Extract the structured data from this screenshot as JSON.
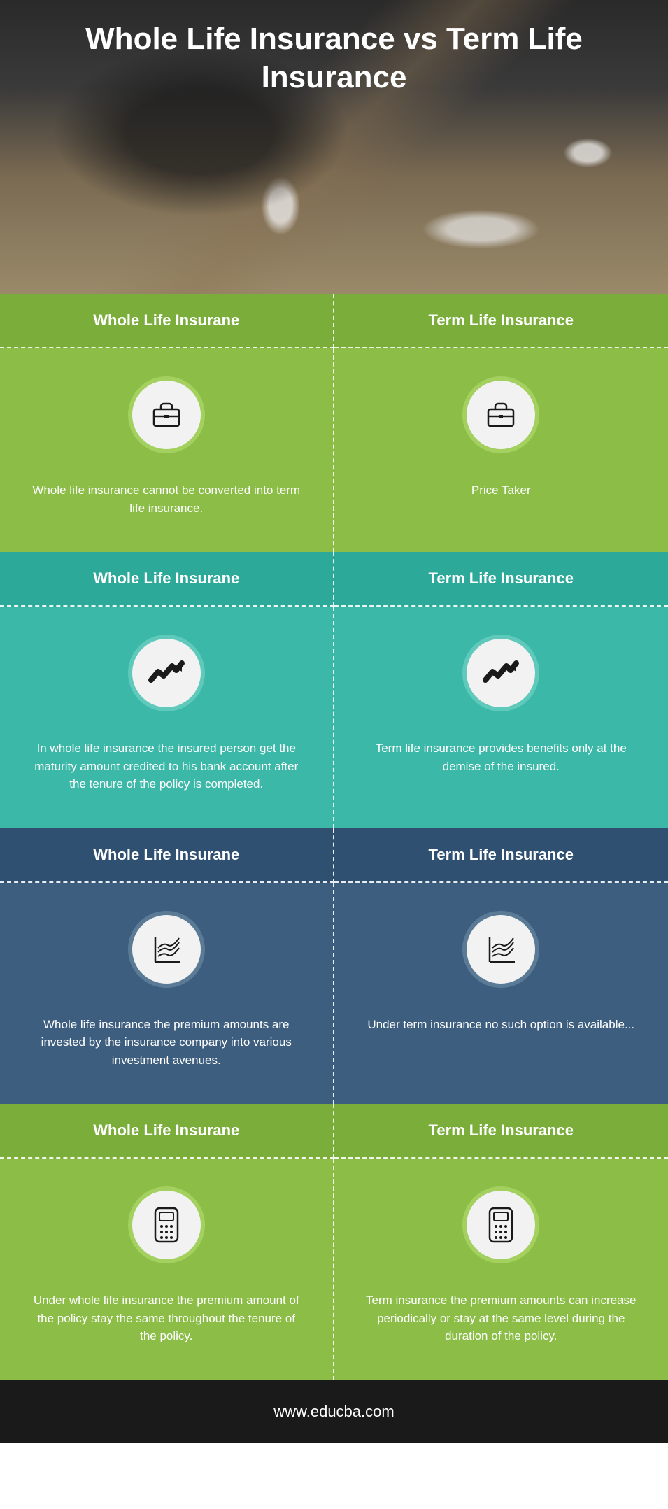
{
  "title": "Whole Life Insurance vs Term Life Insurance",
  "footer_url": "www.educba.com",
  "sections": [
    {
      "bg": "#8bbd47",
      "header_bg": "#7aad3a",
      "icon_outer": "#a3d05f",
      "icon_inner": "#f2f2f2",
      "icon_type": "briefcase",
      "left_header": "Whole Life Insurane",
      "right_header": "Term Life Insurance",
      "left_text": "Whole life insurance cannot be converted into term life insurance.",
      "right_text": "Price Taker"
    },
    {
      "bg": "#3bb8a8",
      "header_bg": "#2da99a",
      "icon_outer": "#5fc9bb",
      "icon_inner": "#f2f2f2",
      "icon_type": "trend",
      "left_header": "Whole Life Insurane",
      "right_header": "Term Life Insurance",
      "left_text": "In whole life insurance the insured person get the maturity amount credited to his bank account after the tenure of the policy is completed.",
      "right_text": "Term life insurance provides benefits only at the demise of the insured."
    },
    {
      "bg": "#3d5e7e",
      "header_bg": "#2f5070",
      "icon_outer": "#5a7a96",
      "icon_inner": "#f2f2f2",
      "icon_type": "chart",
      "left_header": "Whole Life Insurane",
      "right_header": "Term Life Insurance",
      "left_text": "Whole life insurance the premium amounts are invested by the insurance company into various investment avenues.",
      "right_text": "Under term insurance no such option is available..."
    },
    {
      "bg": "#8bbd47",
      "header_bg": "#7aad3a",
      "icon_outer": "#a3d05f",
      "icon_inner": "#f2f2f2",
      "icon_type": "calculator",
      "left_header": "Whole Life Insurane",
      "right_header": "Term Life Insurance",
      "left_text": "Under whole life insurance the premium amount of the policy stay the same throughout the tenure of the policy.",
      "right_text": "Term insurance the premium amounts can increase periodically or stay at the same level during the duration of the policy."
    }
  ]
}
